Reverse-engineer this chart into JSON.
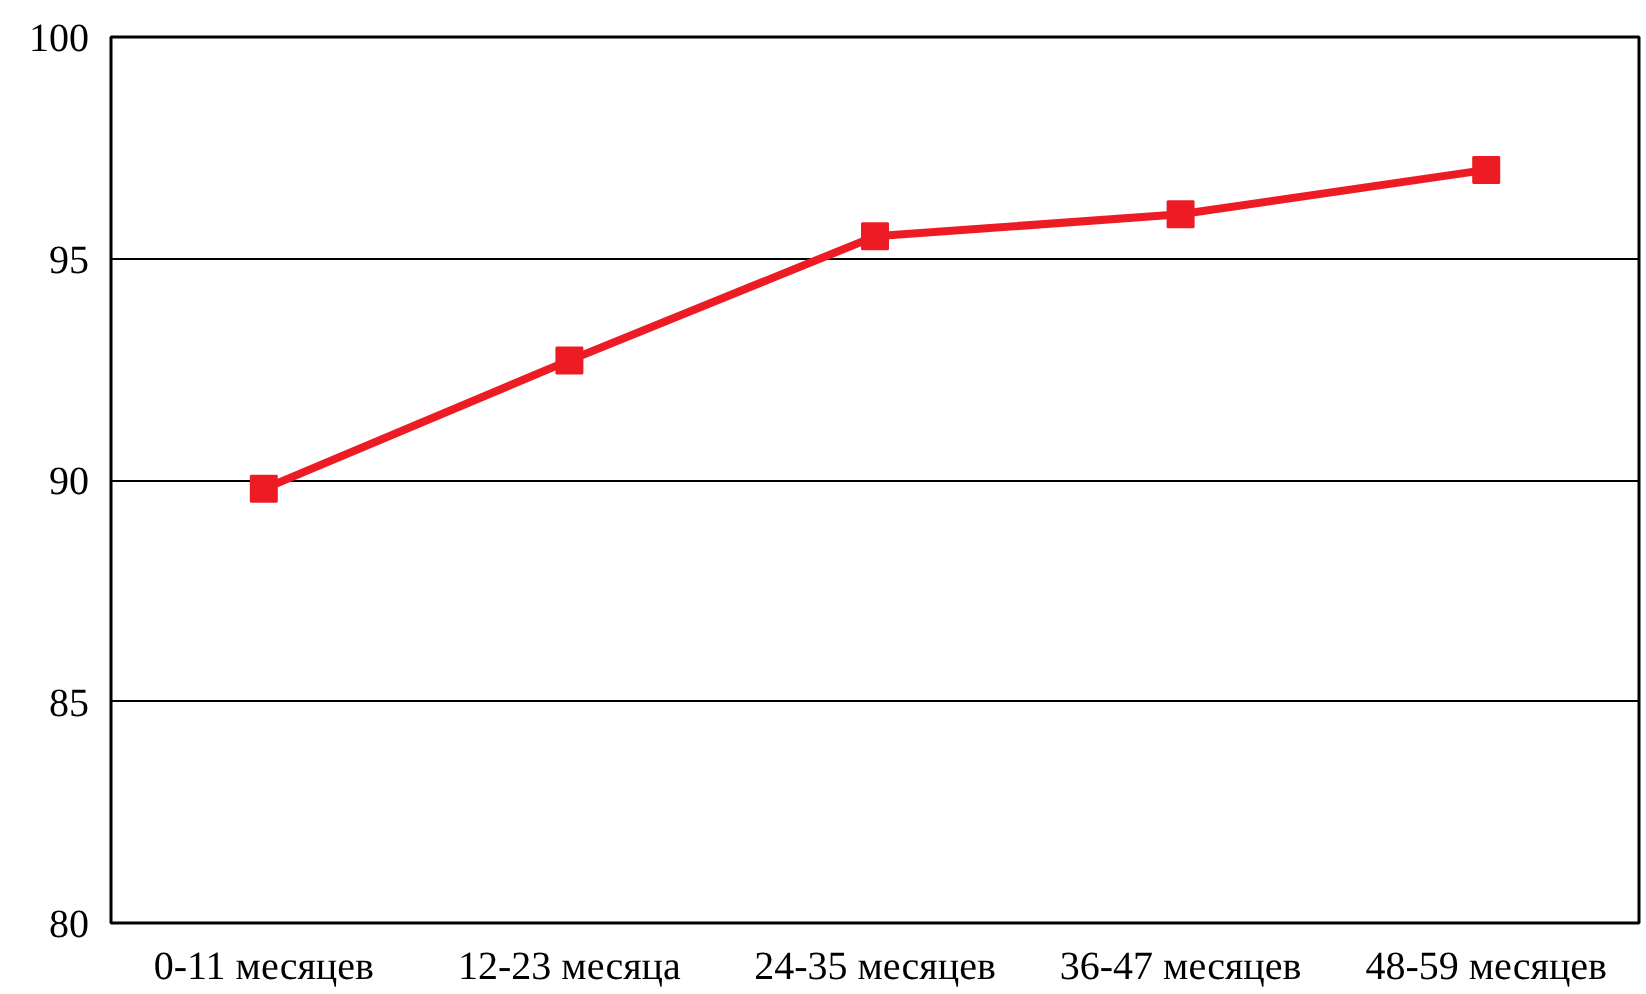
{
  "chart_data": {
    "type": "line",
    "categories": [
      "0-11 месяцев",
      "12-23 месяца",
      "24-35 месяцев",
      "36-47 месяцев",
      "48-59 месяцев"
    ],
    "series": [
      {
        "color": "#ed1c24",
        "values": [
          89.8,
          92.7,
          95.5,
          96.0,
          97.0
        ]
      }
    ],
    "ylim": [
      80,
      100
    ],
    "yticks": [
      80,
      85,
      90,
      95,
      100
    ],
    "grid": "y",
    "marker": "square",
    "line_style": "solid"
  }
}
